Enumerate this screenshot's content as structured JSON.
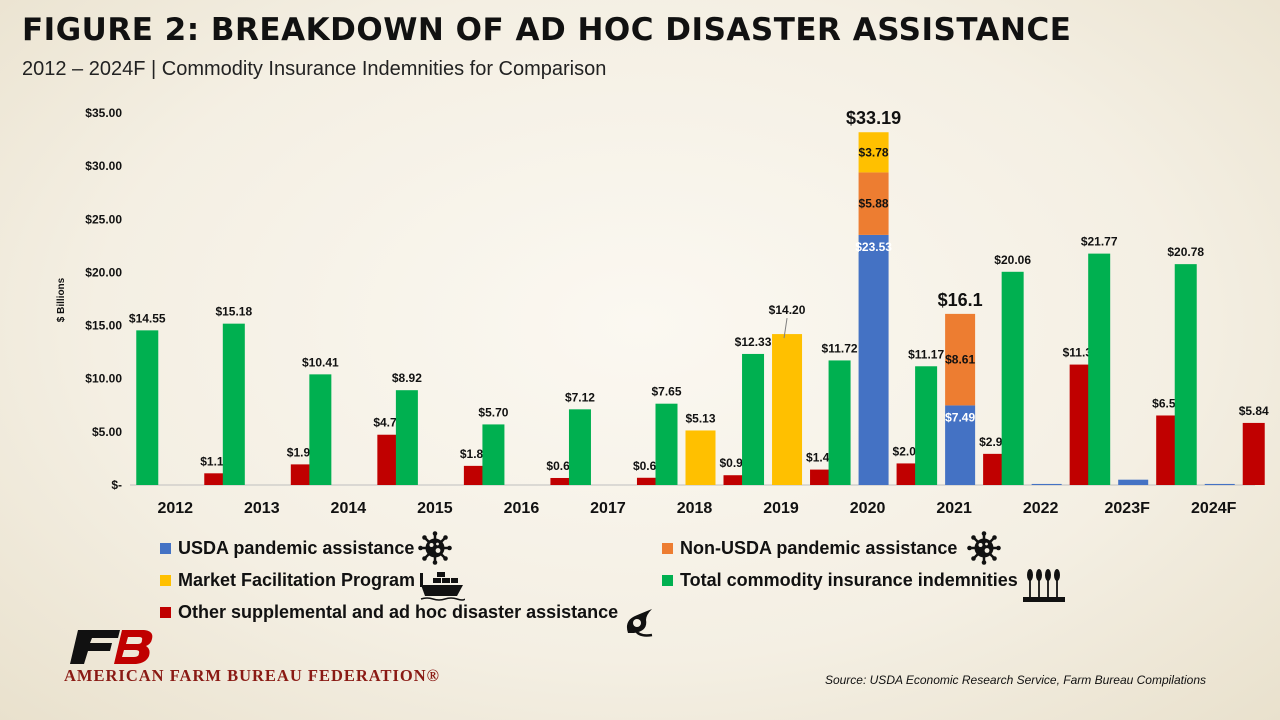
{
  "header": {
    "title": "FIGURE 2: BREAKDOWN OF AD HOC DISASTER ASSISTANCE",
    "subtitle": "2012 – 2024F | Commodity Insurance Indemnities for Comparison"
  },
  "chart_data": {
    "type": "bar",
    "categories": [
      "2012",
      "2013",
      "2014",
      "2015",
      "2016",
      "2017",
      "2018",
      "2019",
      "2020",
      "2021",
      "2022",
      "2023F",
      "2024F"
    ],
    "ylabel": "$ Billions",
    "ylim": [
      0,
      35
    ],
    "yticks": [
      0,
      5,
      10,
      15,
      20,
      25,
      30,
      35
    ],
    "ytick_labels": [
      "$-",
      "$5.00",
      "$10.00",
      "$15.00",
      "$20.00",
      "$25.00",
      "$30.00",
      "$35.00"
    ],
    "grid": false,
    "legend_position": "bottom",
    "series": [
      {
        "name": "Total commodity insurance indemnities",
        "color": "#00b050",
        "values": [
          14.55,
          15.18,
          10.41,
          8.92,
          5.7,
          7.12,
          7.65,
          12.33,
          11.72,
          11.17,
          20.06,
          21.77,
          20.78
        ],
        "labels": [
          "$14.55",
          "$15.18",
          "$10.41",
          "$8.92",
          "$5.70",
          "$7.12",
          "$7.65",
          "$12.33",
          "$11.72",
          "$11.17",
          "$20.06",
          "$21.77",
          "$20.78"
        ]
      },
      {
        "name": "Market Facilitation Program",
        "color": "#ffc000",
        "values": [
          0,
          0,
          0,
          0,
          0,
          0,
          5.13,
          14.2,
          3.78,
          0,
          0,
          0,
          0
        ],
        "labels": [
          "",
          "",
          "",
          "",
          "",
          "",
          "$5.13",
          "$14.20",
          "$3.78",
          "",
          "",
          "",
          ""
        ]
      },
      {
        "name": "USDA pandemic assistance",
        "color": "#4472c4",
        "values": [
          0,
          0,
          0,
          0,
          0,
          0,
          0,
          0,
          23.53,
          7.49,
          0.1,
          0.5,
          0.1
        ],
        "labels": [
          "",
          "",
          "",
          "",
          "",
          "",
          "",
          "",
          "$23.53",
          "$7.49",
          "",
          "",
          ""
        ]
      },
      {
        "name": "Non-USDA pandemic assistance",
        "color": "#ed7d31",
        "values": [
          0,
          0,
          0,
          0,
          0,
          0,
          0,
          0,
          5.88,
          8.61,
          0,
          0,
          0
        ],
        "labels": [
          "",
          "",
          "",
          "",
          "",
          "",
          "",
          "",
          "$5.88",
          "$8.61",
          "",
          "",
          ""
        ]
      },
      {
        "name": "Other supplemental and ad hoc disaster assistance",
        "color": "#c00000",
        "values": [
          1.1,
          1.94,
          4.73,
          1.8,
          0.66,
          0.68,
          0.92,
          1.45,
          2.03,
          2.93,
          11.33,
          6.54,
          5.84
        ],
        "labels": [
          "$1.10",
          "$1.94",
          "$4.73",
          "$1.80",
          "$0.66",
          "$0.68",
          "$0.92",
          "$1.45",
          "$2.03",
          "$2.93",
          "$11.33",
          "$6.54",
          "$5.84"
        ]
      }
    ],
    "stack_totals": [
      {
        "category": "2020",
        "value": 33.19,
        "label": "$33.19"
      },
      {
        "category": "2021",
        "value": 16.1,
        "label": "$16.1"
      }
    ]
  },
  "legend": {
    "items": [
      {
        "label": "USDA pandemic assistance",
        "color": "#4472c4",
        "icon": "virus-icon"
      },
      {
        "label": "Non-USDA pandemic assistance",
        "color": "#ed7d31",
        "icon": "virus-icon"
      },
      {
        "label": "Market Facilitation Program",
        "color": "#ffc000",
        "icon": "cargo-ship-icon"
      },
      {
        "label": "Total commodity insurance indemnities",
        "color": "#00b050",
        "icon": "wheat-crop-icon"
      },
      {
        "label": "Other supplemental and ad hoc disaster assistance",
        "color": "#c00000",
        "icon": "hurricane-icon"
      }
    ]
  },
  "footer": {
    "org_name": "AMERICAN FARM BUREAU FEDERATION®",
    "logo_icon": "fb-logo-icon",
    "source": "Source: USDA Economic Research Service, Farm Bureau Compilations"
  }
}
